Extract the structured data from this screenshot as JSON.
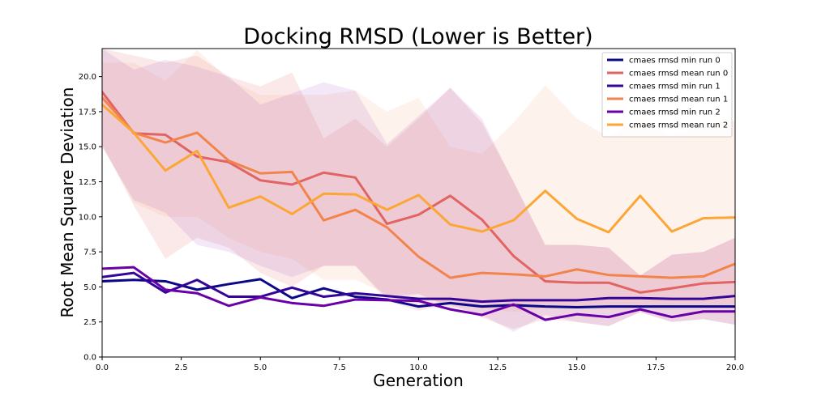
{
  "chart_data": {
    "type": "line",
    "title": "Docking RMSD (Lower is Better)",
    "xlabel": "Generation",
    "ylabel": "Root Mean Square Deviation",
    "xlim": [
      0,
      20
    ],
    "ylim": [
      0,
      22
    ],
    "x_ticks": [
      0,
      2.5,
      5,
      7.5,
      10,
      12.5,
      15,
      17.5,
      20
    ],
    "x_tick_labels": [
      "0.0",
      "2.5",
      "5.0",
      "7.5",
      "10.0",
      "12.5",
      "15.0",
      "17.5",
      "20.0"
    ],
    "y_ticks": [
      0,
      2.5,
      5,
      7.5,
      10,
      12.5,
      15,
      17.5,
      20
    ],
    "y_tick_labels": [
      "0.0",
      "2.5",
      "5.0",
      "7.5",
      "10.0",
      "12.5",
      "15.0",
      "17.5",
      "20.0"
    ],
    "grid": false,
    "legend_position": "top-right",
    "x": [
      0,
      1,
      2,
      3,
      4,
      5,
      6,
      7,
      8,
      9,
      10,
      11,
      12,
      13,
      14,
      15,
      16,
      17,
      18,
      19,
      20
    ],
    "series": [
      {
        "name": "cmaes rmsd min run 0",
        "color": "#0d0887",
        "values": [
          5.4,
          5.5,
          5.4,
          4.8,
          5.2,
          5.55,
          4.2,
          4.9,
          4.3,
          4.1,
          3.6,
          3.85,
          3.6,
          3.7,
          3.6,
          3.55,
          3.6,
          3.6,
          3.6,
          3.6,
          3.6
        ]
      },
      {
        "name": "cmaes rmsd mean run 0",
        "color": "#e16462",
        "values": [
          18.9,
          15.95,
          15.85,
          14.3,
          13.9,
          12.6,
          12.3,
          13.15,
          12.8,
          9.5,
          10.15,
          11.5,
          9.8,
          7.2,
          5.4,
          5.3,
          5.3,
          4.6,
          4.9,
          5.25,
          5.35
        ]
      },
      {
        "name": "cmaes rmsd min run 1",
        "color": "#350498",
        "values": [
          5.7,
          6.0,
          4.6,
          5.5,
          4.3,
          4.3,
          4.95,
          4.3,
          4.55,
          4.35,
          4.15,
          4.15,
          3.95,
          4.05,
          4.05,
          4.05,
          4.2,
          4.2,
          4.15,
          4.15,
          4.35
        ]
      },
      {
        "name": "cmaes rmsd mean run 1",
        "color": "#f2844b",
        "values": [
          18.5,
          16.0,
          15.3,
          16.0,
          14.0,
          13.1,
          13.2,
          9.75,
          10.5,
          9.25,
          7.15,
          5.65,
          6.0,
          5.9,
          5.75,
          6.25,
          5.85,
          5.75,
          5.65,
          5.75,
          6.65
        ]
      },
      {
        "name": "cmaes rmsd min run 2",
        "color": "#6a00a8",
        "values": [
          6.3,
          6.4,
          4.8,
          4.55,
          3.65,
          4.25,
          3.85,
          3.65,
          4.1,
          4.05,
          4.0,
          3.4,
          3.0,
          3.75,
          2.65,
          3.05,
          2.85,
          3.4,
          2.85,
          3.25,
          3.25
        ]
      },
      {
        "name": "cmaes rmsd mean run 2",
        "color": "#fca636",
        "values": [
          18.0,
          16.0,
          13.3,
          14.7,
          10.65,
          11.45,
          10.2,
          11.65,
          11.6,
          10.5,
          11.55,
          9.45,
          8.95,
          9.75,
          11.85,
          9.85,
          8.9,
          11.5,
          8.95,
          9.9,
          9.95
        ]
      }
    ],
    "bands": [
      {
        "series": "cmaes rmsd mean run 0",
        "color": "#e16462",
        "opacity": 0.14,
        "upper": [
          22,
          21.5,
          21.0,
          21.5,
          20.0,
          19.3,
          20.3,
          15.6,
          17.0,
          15.0,
          17.0,
          19.2,
          16.7,
          12.5,
          8.0,
          8.0,
          7.8,
          5.8,
          7.3,
          7.5,
          8.5
        ],
        "lower": [
          15.2,
          10.8,
          7.0,
          8.5,
          7.8,
          6.0,
          5.0,
          6.5,
          6.5,
          4.0,
          3.3,
          3.8,
          2.8,
          2.0,
          2.7,
          2.5,
          2.2,
          3.2,
          2.5,
          2.7,
          2.3
        ]
      },
      {
        "series": "cmaes rmsd mean run 1",
        "color": "#f2844b",
        "opacity": 0.1,
        "upper": [
          21.0,
          21.0,
          19.7,
          21.9,
          19.8,
          18.7,
          18.7,
          18.7,
          19.0,
          17.5,
          18.5,
          15.0,
          14.5,
          16.7,
          19.4,
          17.0,
          15.7,
          17.0,
          15.7,
          16.7,
          16.8
        ],
        "lower": [
          15.0,
          11.0,
          10.0,
          10.0,
          8.5,
          7.5,
          7.0,
          5.5,
          5.5,
          4.5,
          4.5,
          3.5,
          3.5,
          3.2,
          3.5,
          3.5,
          3.5,
          3.5,
          3.5,
          3.5,
          3.5
        ]
      },
      {
        "series": "cmaes rmsd mean run 2",
        "color": "#6a00a8",
        "opacity": 0.09,
        "upper": [
          22,
          20.5,
          21.2,
          20.7,
          20.0,
          18.0,
          18.8,
          19.6,
          19.0,
          15.2,
          17.2,
          19.2,
          17.0,
          12.5,
          8.0,
          8.0,
          7.8,
          5.8,
          7.3,
          7.5,
          8.5
        ],
        "lower": [
          15.0,
          11.2,
          10.3,
          8.0,
          7.5,
          6.5,
          5.7,
          6.5,
          6.5,
          4.2,
          4.5,
          3.6,
          3.0,
          1.8,
          3.0,
          2.5,
          2.2,
          3.2,
          2.5,
          2.7,
          2.3
        ]
      }
    ]
  }
}
